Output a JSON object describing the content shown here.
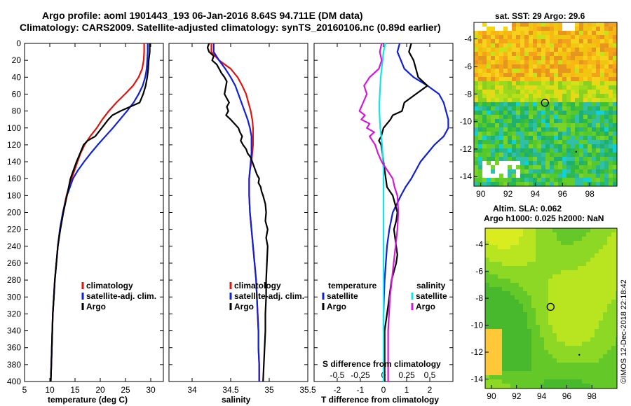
{
  "title_line1": "Argo profile: aoml 1901443_193 06-Jan-2016 8.64S 94.711E (DM data)",
  "title_line2": "Climatology: CARS2009. Satellite-adjusted climatology: synTS_20160106.nc (0.89d earlier)",
  "copyright": "©IMOS 12-Dec-2018 22:18:42",
  "colors": {
    "climatology": "#e0140e",
    "satellite": "#1020d8",
    "argo": "#000000",
    "sat_salinity": "#12e4e8",
    "argo_salinity": "#d418d8"
  },
  "chart_data": [
    {
      "type": "line",
      "id": "temperature",
      "xlabel": "temperature (deg C)",
      "ylabel": "",
      "xlim": [
        5,
        32.5
      ],
      "ylim": [
        400,
        0
      ],
      "xticks": [
        "5",
        "10",
        "15",
        "20",
        "25",
        "30"
      ],
      "xtick_values": [
        5,
        10,
        15,
        20,
        25,
        30
      ],
      "yticks": [
        "0",
        "20",
        "40",
        "60",
        "80",
        "100",
        "120",
        "140",
        "160",
        "180",
        "200",
        "220",
        "240",
        "260",
        "280",
        "300",
        "320",
        "340",
        "360",
        "380",
        "400"
      ],
      "ytick_values": [
        0,
        20,
        40,
        60,
        80,
        100,
        120,
        140,
        160,
        180,
        200,
        220,
        240,
        260,
        280,
        300,
        320,
        340,
        360,
        380,
        400
      ],
      "legend": [
        "climatology",
        "satellite-adj. clim.",
        "Argo"
      ],
      "series": [
        {
          "name": "climatology",
          "color": "#e0140e",
          "depth": [
            0,
            10,
            20,
            30,
            40,
            50,
            60,
            70,
            80,
            90,
            100,
            110,
            120,
            130,
            140,
            150,
            160,
            180,
            200,
            220,
            240,
            260,
            280,
            300,
            320,
            340,
            360,
            380,
            400
          ],
          "values": [
            28.7,
            28.7,
            28.6,
            28.3,
            27.6,
            26.5,
            24.9,
            23.2,
            21.7,
            20.4,
            19.3,
            18.0,
            16.9,
            16.1,
            15.5,
            14.9,
            14.3,
            13.3,
            12.6,
            12.0,
            11.6,
            11.3,
            11.0,
            10.8,
            10.6,
            10.5,
            10.4,
            10.3,
            10.2
          ]
        },
        {
          "name": "satellite-adj. clim.",
          "color": "#1020d8",
          "depth": [
            0,
            10,
            20,
            30,
            40,
            50,
            60,
            70,
            80,
            90,
            100,
            110,
            120,
            130,
            140,
            150,
            160,
            180,
            200,
            220,
            240,
            260,
            280,
            300,
            320,
            340,
            360,
            380,
            400
          ],
          "values": [
            29.4,
            29.4,
            29.3,
            29.2,
            28.9,
            28.4,
            27.6,
            26.6,
            25.3,
            23.9,
            22.5,
            21.0,
            19.5,
            18.1,
            16.8,
            15.6,
            14.6,
            13.4,
            12.6,
            12.0,
            11.6,
            11.3,
            11.0,
            10.8,
            10.6,
            10.5,
            10.4,
            10.3,
            10.2
          ]
        },
        {
          "name": "Argo",
          "color": "#000000",
          "depth": [
            0,
            10,
            20,
            30,
            40,
            50,
            60,
            70,
            80,
            85,
            90,
            100,
            110,
            115,
            120,
            130,
            140,
            150,
            160,
            180,
            200,
            220,
            240,
            260,
            280,
            300,
            320,
            340,
            360,
            380,
            400
          ],
          "values": [
            29.8,
            29.8,
            29.6,
            29.5,
            29.3,
            29.0,
            28.5,
            27.8,
            24.0,
            22.4,
            21.6,
            20.3,
            19.0,
            17.5,
            16.7,
            16.0,
            15.3,
            14.7,
            14.1,
            13.4,
            12.7,
            12.1,
            11.6,
            11.3,
            11.0,
            10.8,
            10.6,
            10.5,
            10.4,
            10.3,
            10.2
          ]
        }
      ]
    },
    {
      "type": "line",
      "id": "salinity",
      "xlabel": "salinity",
      "ylabel": "",
      "xlim": [
        33.7,
        35.5
      ],
      "ylim": [
        400,
        0
      ],
      "xticks": [
        "34",
        "34.5",
        "35",
        "35.5"
      ],
      "xtick_values": [
        34,
        34.5,
        35,
        35.5
      ],
      "legend": [
        "climatology",
        "satellite-adj. clim.",
        "Argo"
      ],
      "series": [
        {
          "name": "climatology",
          "color": "#e0140e",
          "depth": [
            0,
            10,
            20,
            30,
            40,
            50,
            60,
            70,
            80,
            90,
            100,
            110,
            120,
            130,
            140,
            150,
            160,
            180,
            200,
            220,
            240,
            260,
            280,
            300,
            320,
            340,
            360,
            380,
            400
          ],
          "values": [
            34.25,
            34.25,
            34.35,
            34.5,
            34.59,
            34.65,
            34.7,
            34.73,
            34.76,
            34.78,
            34.79,
            34.79,
            34.79,
            34.78,
            34.77,
            34.75,
            34.74,
            34.74,
            34.75,
            34.77,
            34.79,
            34.81,
            34.83,
            34.84,
            34.85,
            34.86,
            34.86,
            34.87,
            34.87
          ]
        },
        {
          "name": "satellite-adj. clim.",
          "color": "#1020d8",
          "depth": [
            0,
            10,
            20,
            30,
            40,
            50,
            60,
            70,
            80,
            90,
            100,
            110,
            120,
            130,
            140,
            150,
            160,
            180,
            200,
            220,
            240,
            260,
            280,
            300,
            320,
            340,
            360,
            380,
            400
          ],
          "values": [
            34.28,
            34.28,
            34.35,
            34.43,
            34.5,
            34.56,
            34.6,
            34.64,
            34.68,
            34.72,
            34.75,
            34.77,
            34.77,
            34.77,
            34.76,
            34.75,
            34.74,
            34.74,
            34.75,
            34.77,
            34.79,
            34.81,
            34.83,
            34.84,
            34.85,
            34.86,
            34.86,
            34.87,
            34.87
          ]
        },
        {
          "name": "Argo",
          "color": "#000000",
          "depth": [
            0,
            5,
            10,
            15,
            20,
            25,
            30,
            35,
            40,
            45,
            50,
            55,
            60,
            65,
            70,
            75,
            80,
            85,
            90,
            95,
            100,
            105,
            110,
            115,
            120,
            125,
            130,
            135,
            140,
            145,
            150,
            155,
            160,
            165,
            170,
            175,
            180,
            190,
            200,
            210,
            220,
            230,
            240,
            260,
            280,
            300,
            320,
            340,
            360,
            380,
            400
          ],
          "values": [
            34.22,
            34.2,
            34.22,
            34.28,
            34.26,
            34.32,
            34.35,
            34.38,
            34.42,
            34.45,
            34.44,
            34.43,
            34.42,
            34.45,
            34.48,
            34.45,
            34.47,
            34.44,
            34.5,
            34.55,
            34.6,
            34.62,
            34.65,
            34.63,
            34.66,
            34.7,
            34.72,
            34.76,
            34.78,
            34.8,
            34.82,
            34.84,
            34.87,
            34.86,
            34.89,
            34.9,
            34.92,
            34.95,
            34.96,
            34.95,
            34.98,
            34.96,
            34.98,
            34.97,
            34.96,
            34.96,
            34.95,
            34.95,
            34.94,
            34.93,
            34.92
          ]
        }
      ]
    },
    {
      "type": "line",
      "id": "difference",
      "xlabel": "T difference from climatology",
      "xlabel2": "S difference from climatology",
      "xlim": [
        -3,
        3
      ],
      "ylim": [
        400,
        0
      ],
      "xticks": [
        "-2",
        "-1",
        "0",
        "1",
        "2"
      ],
      "xtick_values": [
        -2,
        -1,
        0,
        1,
        2
      ],
      "xticks_s": [
        "-0.5",
        "-0.25",
        "0",
        "0.25",
        "0.5"
      ],
      "xtick_values_s": [
        -0.5,
        -0.25,
        0,
        0.25,
        0.5
      ],
      "legend_temperature": [
        "temperature",
        "satellite",
        "Argo"
      ],
      "legend_salinity": [
        "salinity",
        "satellite",
        "Argo"
      ],
      "series": [
        {
          "name": "T satellite",
          "color": "#1020d8",
          "depth": [
            0,
            10,
            20,
            30,
            40,
            50,
            60,
            70,
            80,
            90,
            100,
            110,
            120,
            130,
            140,
            150,
            160,
            170,
            180,
            200,
            220,
            240,
            260,
            280,
            300,
            320,
            340,
            360,
            380,
            400
          ],
          "values": [
            0.7,
            0.6,
            0.75,
            0.9,
            1.3,
            1.9,
            2.4,
            2.6,
            2.7,
            2.8,
            2.8,
            2.6,
            2.2,
            1.9,
            1.6,
            1.4,
            1.2,
            0.95,
            0.75,
            0.4,
            0.25,
            0.15,
            0.1,
            0.05,
            0.02,
            0.0,
            0.0,
            0.02,
            0.03,
            0.05
          ]
        },
        {
          "name": "T Argo",
          "color": "#000000",
          "depth": [
            0,
            10,
            20,
            30,
            40,
            50,
            60,
            70,
            80,
            85,
            90,
            100,
            110,
            115,
            120,
            130,
            140,
            150,
            160,
            170,
            180,
            190,
            200,
            210,
            220,
            230,
            240,
            250,
            260,
            280,
            300,
            320,
            340,
            360,
            380,
            400
          ],
          "values": [
            1.2,
            1.1,
            1.3,
            1.4,
            1.5,
            1.9,
            1.4,
            0.9,
            0.8,
            0.4,
            0.3,
            0.0,
            -0.1,
            -0.2,
            -0.1,
            -0.05,
            0.0,
            0.05,
            0.1,
            0.15,
            0.4,
            0.5,
            0.6,
            0.55,
            0.45,
            0.5,
            0.55,
            0.6,
            0.55,
            0.35,
            0.25,
            0.15,
            0.05,
            0.05,
            0.05,
            0.05
          ]
        },
        {
          "name": "S satellite",
          "color": "#12e4e8",
          "depth": [
            0,
            10,
            20,
            30,
            40,
            50,
            60,
            70,
            80,
            90,
            100,
            110,
            120,
            130,
            140,
            150,
            160,
            180,
            200,
            220,
            240,
            260,
            280,
            300,
            320,
            340,
            360,
            380,
            400
          ],
          "values": [
            0.02,
            0.0,
            -0.01,
            -0.02,
            -0.03,
            -0.035,
            -0.04,
            -0.045,
            -0.045,
            -0.04,
            -0.035,
            -0.025,
            -0.015,
            -0.01,
            -0.005,
            0.0,
            0.0,
            0.0,
            0.0,
            0.0,
            0.0,
            0.0,
            0.0,
            0.0,
            0.0,
            0.0,
            0.0,
            0.0,
            0.0
          ]
        },
        {
          "name": "S Argo",
          "color": "#d418d8",
          "depth": [
            0,
            10,
            20,
            30,
            40,
            50,
            60,
            70,
            80,
            85,
            90,
            95,
            100,
            105,
            110,
            120,
            130,
            140,
            150,
            160,
            170,
            180,
            200,
            220,
            240,
            260,
            280,
            300,
            320,
            340,
            360,
            380,
            400
          ],
          "values": [
            -0.02,
            -0.04,
            -0.02,
            -0.05,
            -0.15,
            -0.21,
            -0.18,
            -0.22,
            -0.26,
            -0.2,
            -0.24,
            -0.15,
            -0.18,
            -0.1,
            -0.15,
            -0.09,
            -0.06,
            -0.02,
            0.04,
            0.1,
            0.12,
            0.15,
            0.16,
            0.15,
            0.13,
            0.11,
            0.09,
            0.07,
            0.06,
            0.05,
            0.05,
            0.05,
            0.05
          ]
        }
      ]
    },
    {
      "type": "heatmap",
      "id": "sst_map",
      "title": "sat. SST: 29 Argo: 29.6",
      "xlim": [
        89.5,
        100
      ],
      "ylim": [
        -14.7,
        -2.8
      ],
      "xticks": [
        "90",
        "92",
        "94",
        "96",
        "98"
      ],
      "xtick_values": [
        90,
        92,
        94,
        96,
        98
      ],
      "yticks": [
        "-4",
        "-6",
        "-8",
        "-10",
        "-12",
        "-14"
      ],
      "ytick_values": [
        -4,
        -6,
        -8,
        -10,
        -12,
        -14
      ],
      "marker": {
        "lon": 94.711,
        "lat": -8.64
      }
    },
    {
      "type": "heatmap",
      "id": "sla_map",
      "title_line1": "Altim. SLA: 0.062",
      "title_line2": "Argo h1000: 0.025 h2000: NaN",
      "xlim": [
        89.5,
        100
      ],
      "ylim": [
        -14.7,
        -2.8
      ],
      "xticks": [
        "90",
        "92",
        "94",
        "96",
        "98"
      ],
      "xtick_values": [
        90,
        92,
        94,
        96,
        98
      ],
      "yticks": [
        "-4",
        "-6",
        "-8",
        "-10",
        "-12",
        "-14"
      ],
      "ytick_values": [
        -4,
        -6,
        -8,
        -10,
        -12,
        -14
      ],
      "marker": {
        "lon": 94.711,
        "lat": -8.64
      }
    }
  ]
}
